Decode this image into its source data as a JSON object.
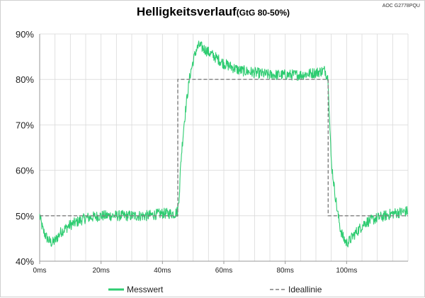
{
  "title": "Helligkeitsverlauf",
  "subtitle": "(GtG 80-50%)",
  "corner_label": "AOC G2778PQU",
  "colors": {
    "measured": "#2ecc71",
    "ideal": "#7f7f7f",
    "grid": "#d9d9d9",
    "axis": "#9a9a9a"
  },
  "chart_data": {
    "type": "line",
    "title": "Helligkeitsverlauf",
    "subtitle": "(GtG 80-50%)",
    "xlabel": "",
    "ylabel": "",
    "xlim": [
      0,
      120
    ],
    "ylim": [
      40,
      90
    ],
    "x_ticks": [
      "0ms",
      "20ms",
      "40ms",
      "60ms",
      "80ms",
      "100ms"
    ],
    "y_ticks": [
      "40%",
      "50%",
      "60%",
      "70%",
      "80%",
      "90%"
    ],
    "grid": true,
    "legend_position": "bottom",
    "series": [
      {
        "name": "Messwert",
        "style": "solid",
        "noise": 1.2,
        "x": [
          0,
          1,
          2,
          3,
          4,
          5,
          7,
          10,
          15,
          20,
          25,
          30,
          35,
          40,
          44,
          45,
          45.6,
          46,
          47,
          48,
          49,
          50,
          51,
          52,
          53,
          55,
          57,
          60,
          65,
          70,
          75,
          80,
          85,
          90,
          93,
          94,
          94.5,
          95,
          96,
          97,
          98,
          99,
          100,
          101,
          102,
          104,
          106,
          110,
          115,
          120
        ],
        "y": [
          50,
          47,
          45.5,
          44.5,
          44,
          44.5,
          46.5,
          48,
          49.5,
          50,
          50,
          50,
          50,
          50.5,
          50.5,
          51,
          56,
          62,
          70,
          76,
          81,
          84,
          86.5,
          87.5,
          87,
          86,
          85,
          83.5,
          82,
          81.5,
          81,
          81,
          81,
          81.5,
          82,
          80,
          70,
          62,
          56,
          51,
          47,
          45,
          44,
          44.5,
          45.5,
          47,
          48.5,
          49.5,
          50.5,
          51
        ]
      },
      {
        "name": "Ideallinie",
        "style": "dashed",
        "x": [
          0,
          45,
          45,
          94,
          94,
          120
        ],
        "y": [
          50,
          50,
          80,
          80,
          50,
          50
        ]
      }
    ]
  }
}
